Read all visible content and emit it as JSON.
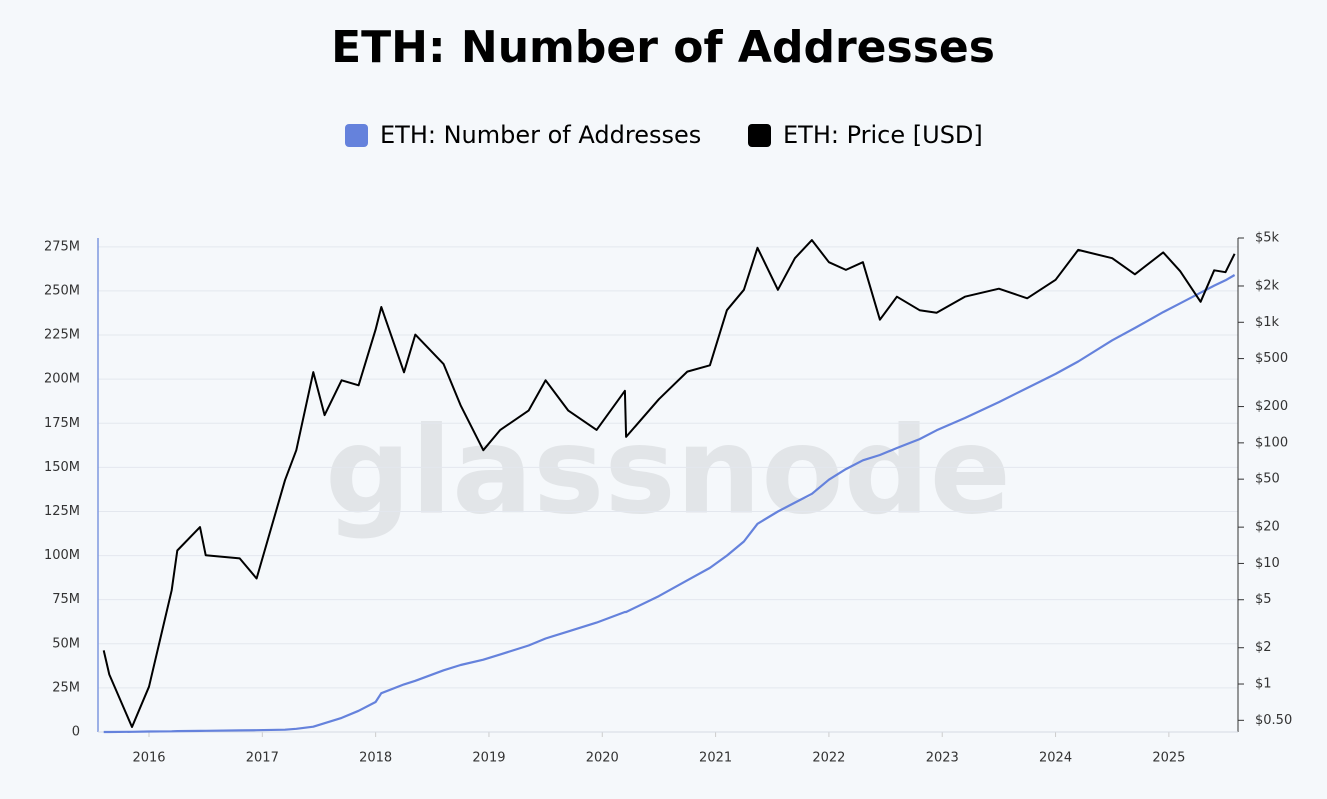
{
  "chart_data": {
    "type": "line",
    "title": "ETH: Number of Addresses",
    "watermark": "glassnode",
    "x": [
      2015.6,
      2015.65,
      2015.85,
      2016,
      2016.2,
      2016.25,
      2016.45,
      2016.5,
      2016.8,
      2016.95,
      2017.2,
      2017.3,
      2017.45,
      2017.55,
      2017.7,
      2017.85,
      2018,
      2018.05,
      2018.25,
      2018.35,
      2018.6,
      2018.75,
      2018.95,
      2019.1,
      2019.35,
      2019.5,
      2019.7,
      2019.95,
      2020.2,
      2020.21,
      2020.5,
      2020.75,
      2020.95,
      2021.1,
      2021.25,
      2021.37,
      2021.55,
      2021.7,
      2021.85,
      2022,
      2022.15,
      2022.3,
      2022.45,
      2022.6,
      2022.8,
      2022.95,
      2023.2,
      2023.5,
      2023.75,
      2024,
      2024.2,
      2024.5,
      2024.7,
      2024.95,
      2025.1,
      2025.28,
      2025.4,
      2025.5,
      2025.58
    ],
    "xlim": [
      2015.55,
      2025.61
    ],
    "xticks": [
      2016,
      2017,
      2018,
      2019,
      2020,
      2021,
      2022,
      2023,
      2024,
      2025
    ],
    "series": [
      {
        "name": "ETH: Number of Addresses",
        "color": "#6582dc",
        "axis": "y",
        "values": [
          0,
          0,
          100000,
          300000,
          400000,
          500000,
          600000,
          700000,
          900000,
          1000000,
          1300000,
          1800000,
          3000000,
          5000000,
          8000000,
          12000000,
          17000000,
          22000000,
          27000000,
          29000000,
          35000000,
          38000000,
          41000000,
          44000000,
          49000000,
          53000000,
          57000000,
          62000000,
          68000000,
          68000000,
          77000000,
          86000000,
          93000000,
          100000000,
          108000000,
          118000000,
          125000000,
          130000000,
          135000000,
          143000000,
          149000000,
          154000000,
          157000000,
          161000000,
          166000000,
          171000000,
          178000000,
          187000000,
          195000000,
          203000000,
          210000000,
          222000000,
          229000000,
          238000000,
          243000000,
          249000000,
          253000000,
          256000000,
          259000000
        ]
      },
      {
        "name": "ETH: Price [USD]",
        "color": "#000000",
        "axis": "y2",
        "values": [
          1.9,
          1.2,
          0.44,
          0.95,
          6,
          12.8,
          20,
          11.7,
          11,
          7.5,
          49,
          87,
          386,
          170,
          330,
          300,
          870,
          1340,
          385,
          790,
          450,
          205,
          87,
          128,
          185,
          330,
          185,
          128,
          270,
          112,
          230,
          390,
          440,
          1260,
          1860,
          4150,
          1860,
          3400,
          4800,
          3150,
          2720,
          3150,
          1050,
          1630,
          1260,
          1200,
          1630,
          1900,
          1580,
          2250,
          3980,
          3400,
          2500,
          3800,
          2650,
          1480,
          2700,
          2600,
          3700
        ]
      }
    ],
    "ylim": [
      0,
      280000000
    ],
    "yticks": [
      0,
      {
        "value": 25000000,
        "label": "25M"
      },
      {
        "value": 50000000,
        "label": "50M"
      },
      {
        "value": 75000000,
        "label": "75M"
      },
      {
        "value": 100000000,
        "label": "100M"
      },
      {
        "value": 125000000,
        "label": "125M"
      },
      {
        "value": 150000000,
        "label": "150M"
      },
      {
        "value": 175000000,
        "label": "175M"
      },
      {
        "value": 200000000,
        "label": "200M"
      },
      {
        "value": 225000000,
        "label": "225M"
      },
      {
        "value": 250000000,
        "label": "250M"
      },
      {
        "value": 275000000,
        "label": "275M"
      }
    ],
    "y2lim": [
      0.4,
      5000
    ],
    "y2log": true,
    "y2ticks": [
      {
        "value": 0.5,
        "label": "$0.50"
      },
      {
        "value": 1,
        "label": "$1"
      },
      {
        "value": 2,
        "label": "$2"
      },
      {
        "value": 5,
        "label": "$5"
      },
      {
        "value": 10,
        "label": "$10"
      },
      {
        "value": 20,
        "label": "$20"
      },
      {
        "value": 50,
        "label": "$50"
      },
      {
        "value": 100,
        "label": "$100"
      },
      {
        "value": 200,
        "label": "$200"
      },
      {
        "value": 500,
        "label": "$500"
      },
      {
        "value": 1000,
        "label": "$1k"
      },
      {
        "value": 2000,
        "label": "$2k"
      },
      {
        "value": 5000,
        "label": "$5k"
      }
    ],
    "grid": true
  }
}
